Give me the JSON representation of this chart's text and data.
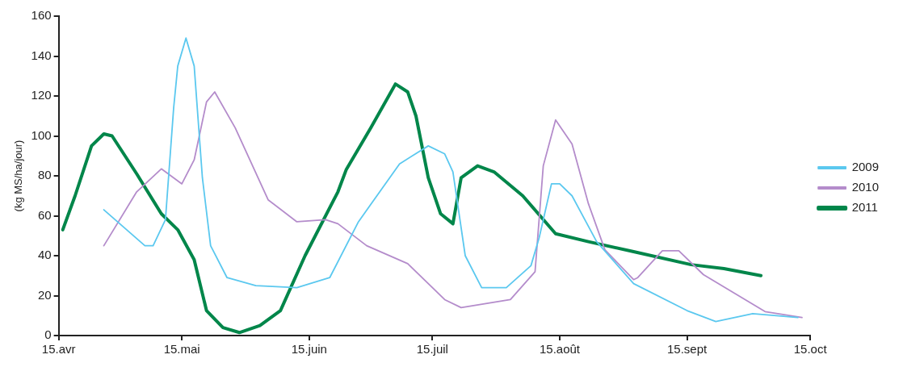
{
  "chart_data": {
    "type": "line",
    "ylabel": "(kg MS/ha/jour)",
    "xlim": [
      "--04-15",
      "--10-15"
    ],
    "xticks": [
      {
        "value": "--04-15",
        "label": "15.avr"
      },
      {
        "value": "--05-15",
        "label": "15.mai"
      },
      {
        "value": "--06-15",
        "label": "15.juin"
      },
      {
        "value": "--07-15",
        "label": "15.juil"
      },
      {
        "value": "--08-15",
        "label": "15.août"
      },
      {
        "value": "--09-15",
        "label": "15.sept"
      },
      {
        "value": "--10-15",
        "label": "15.oct"
      }
    ],
    "ylim": [
      0,
      160
    ],
    "yticks": [
      0,
      20,
      40,
      60,
      80,
      100,
      120,
      140,
      160
    ],
    "grid": false,
    "legend": "right",
    "marker": "none",
    "line_style": "solid",
    "series": [
      {
        "name": "2009",
        "color": "#5bc8ef",
        "x": [
          "--04-26",
          "--05-06",
          "--05-08",
          "--05-11",
          "--05-13",
          "--05-14",
          "--05-16",
          "--05-18",
          "--05-20",
          "--05-22",
          "--05-26",
          "--06-02",
          "--06-12",
          "--06-20",
          "--06-27",
          "--07-07",
          "--07-14",
          "--07-18",
          "--07-20",
          "--07-23",
          "--07-27",
          "--08-02",
          "--08-08",
          "--08-10",
          "--08-13",
          "--08-15",
          "--08-18",
          "--08-24",
          "--09-02",
          "--09-15",
          "--09-22",
          "--10-01",
          "--10-12"
        ],
        "values": [
          63,
          45,
          45,
          58,
          114,
          135,
          149,
          135,
          79,
          45,
          29,
          25,
          24,
          29,
          57,
          86,
          95,
          91,
          82,
          40,
          24,
          24,
          35,
          49,
          76,
          76,
          70,
          47,
          26,
          12.5,
          7,
          11,
          9
        ]
      },
      {
        "name": "2010",
        "color": "#b48ccb",
        "x": [
          "--04-26",
          "--05-04",
          "--05-10",
          "--05-15",
          "--05-18",
          "--05-21",
          "--05-23",
          "--05-28",
          "--06-05",
          "--06-12",
          "--06-19",
          "--06-22",
          "--06-29",
          "--07-09",
          "--07-18",
          "--07-22",
          "--08-03",
          "--08-09",
          "--08-11",
          "--08-14",
          "--08-18",
          "--08-22",
          "--08-26",
          "--09-02",
          "--09-03",
          "--09-09",
          "--09-13",
          "--09-19",
          "--10-04",
          "--10-13"
        ],
        "values": [
          45,
          72,
          83.5,
          76,
          88,
          117,
          122,
          104,
          68,
          57,
          58,
          56,
          45,
          36,
          18,
          14,
          18,
          32,
          85,
          108,
          96,
          66,
          43,
          28,
          29,
          42.5,
          42.5,
          30.5,
          12,
          9
        ]
      },
      {
        "name": "2011",
        "color": "#00864a",
        "x": [
          "--04-16",
          "--04-19",
          "--04-23",
          "--04-26",
          "--04-28",
          "--05-04",
          "--05-10",
          "--05-14",
          "--05-18",
          "--05-21",
          "--05-25",
          "--05-29",
          "--06-03",
          "--06-08",
          "--06-14",
          "--06-22",
          "--06-24",
          "--06-30",
          "--07-06",
          "--07-09",
          "--07-11",
          "--07-14",
          "--07-17",
          "--07-20",
          "--07-22",
          "--07-26",
          "--07-30",
          "--08-06",
          "--08-14",
          "--08-22",
          "--09-02",
          "--09-16",
          "--09-24",
          "--10-03"
        ],
        "values": [
          53,
          70,
          95,
          101,
          100,
          81,
          61,
          53,
          38,
          12.5,
          4,
          1.5,
          5,
          12.5,
          40,
          72,
          83,
          104,
          126,
          122,
          110,
          79,
          61,
          56,
          79,
          85,
          82,
          70,
          51,
          47,
          42,
          35.5,
          33.5,
          30
        ]
      }
    ]
  }
}
